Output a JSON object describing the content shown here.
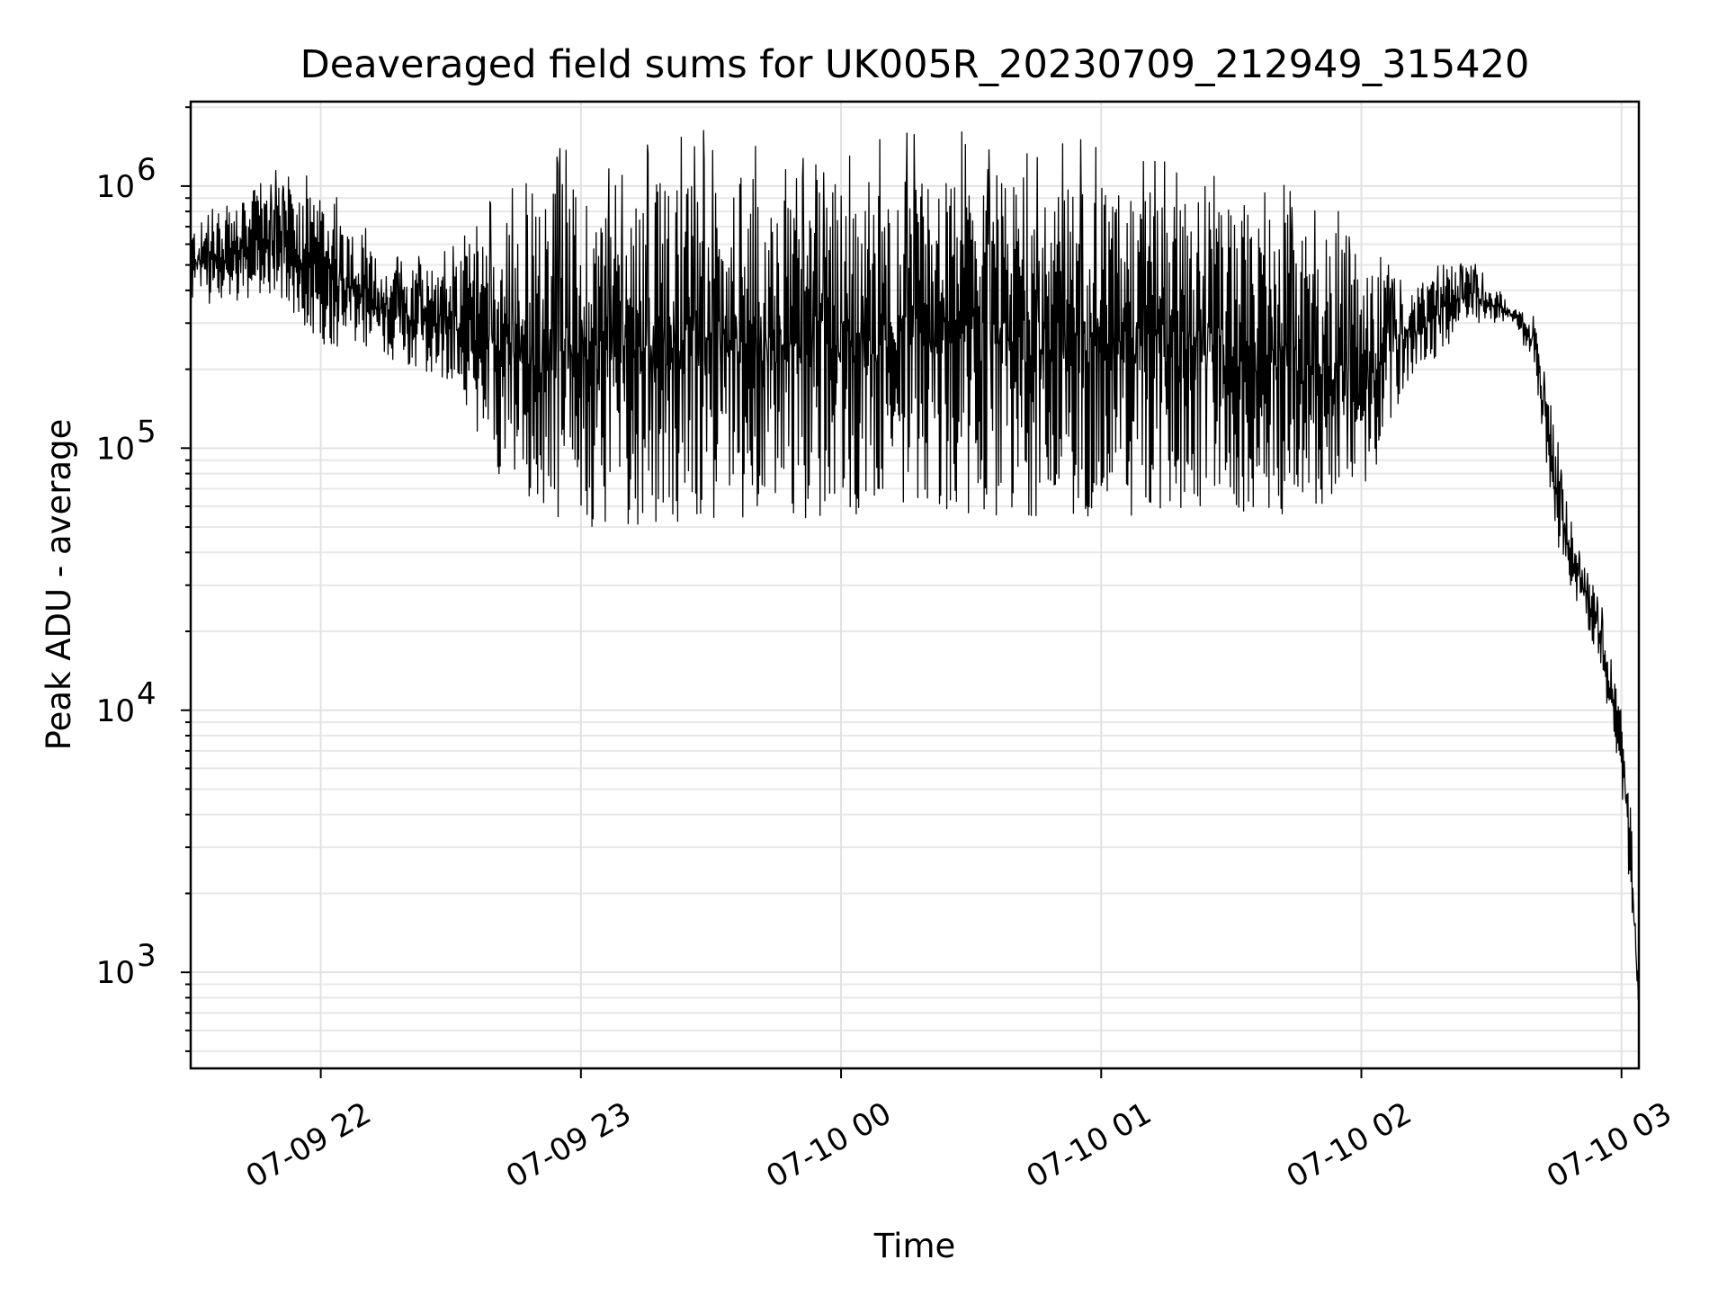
{
  "chart_data": {
    "type": "line",
    "title": "Deaveraged field sums for UK005R_20230709_212949_315420",
    "xlabel": "Time",
    "ylabel": "Peak ADU - average",
    "yscale": "log",
    "ylim": [
      430,
      2100000
    ],
    "xlim": [
      "2023-07-09 21:30",
      "2023-07-10 03:04"
    ],
    "grid": "on (major and minor)",
    "line_color": "#000000",
    "x_ticks": [
      {
        "t": "2023-07-09 22:00",
        "label": "07-09 22"
      },
      {
        "t": "2023-07-09 23:00",
        "label": "07-09 23"
      },
      {
        "t": "2023-07-10 00:00",
        "label": "07-10 00"
      },
      {
        "t": "2023-07-10 01:00",
        "label": "07-10 01"
      },
      {
        "t": "2023-07-10 02:00",
        "label": "07-10 02"
      },
      {
        "t": "2023-07-10 03:00",
        "label": "07-10 03"
      }
    ],
    "y_ticks": [
      {
        "value": 1000,
        "base": "10",
        "exp": "3"
      },
      {
        "value": 10000,
        "base": "10",
        "exp": "4"
      },
      {
        "value": 100000,
        "base": "10",
        "exp": "5"
      },
      {
        "value": 1000000,
        "base": "10",
        "exp": "6"
      }
    ],
    "envelope": [
      {
        "t": "2023-07-09 21:30",
        "low": 350000,
        "high": 700000
      },
      {
        "t": "2023-07-09 21:50",
        "low": 380000,
        "high": 1000000
      },
      {
        "t": "2023-07-09 22:00",
        "low": 250000,
        "high": 900000
      },
      {
        "t": "2023-07-09 22:15",
        "low": 220000,
        "high": 500000
      },
      {
        "t": "2023-07-09 22:30",
        "low": 180000,
        "high": 500000
      },
      {
        "t": "2023-07-09 22:45",
        "low": 60000,
        "high": 800000
      },
      {
        "t": "2023-07-09 23:00",
        "low": 50000,
        "high": 1000000
      },
      {
        "t": "2023-07-10 00:00",
        "low": 55000,
        "high": 1100000
      },
      {
        "t": "2023-07-10 01:00",
        "low": 55000,
        "high": 1000000
      },
      {
        "t": "2023-07-10 01:45",
        "low": 55000,
        "high": 800000
      },
      {
        "t": "2023-07-10 02:00",
        "low": 60000,
        "high": 500000
      },
      {
        "t": "2023-07-10 02:10",
        "low": 170000,
        "high": 400000
      },
      {
        "t": "2023-07-10 02:25",
        "low": 300000,
        "high": 500000
      },
      {
        "t": "2023-07-10 02:35",
        "low": 300000,
        "high": 350000
      },
      {
        "t": "2023-07-10 02:40",
        "low": 200000,
        "high": 300000
      },
      {
        "t": "2023-07-10 02:45",
        "low": 40000,
        "high": 100000
      },
      {
        "t": "2023-07-10 02:50",
        "low": 25000,
        "high": 40000
      },
      {
        "t": "2023-07-10 02:55",
        "low": 15000,
        "high": 25000
      },
      {
        "t": "2023-07-10 03:00",
        "low": 5000,
        "high": 10000
      },
      {
        "t": "2023-07-10 03:02",
        "low": 2000,
        "high": 4000
      },
      {
        "t": "2023-07-10 03:04",
        "low": 650,
        "high": 900
      }
    ]
  }
}
